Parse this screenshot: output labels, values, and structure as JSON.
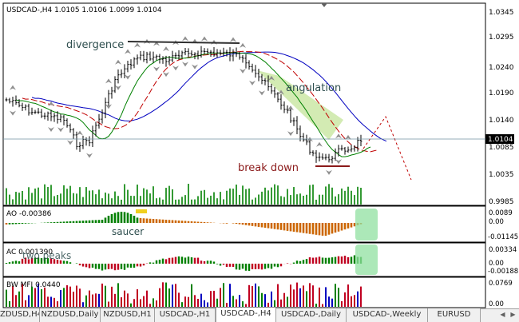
{
  "main_chart": {
    "title": "USDCAD-,H4  1.0105 1.0106 1.0099 1.0104",
    "price_labels": [
      "1.0345",
      "1.0295",
      "1.0240",
      "1.0190",
      "1.0140",
      "1.0085",
      "1.0035",
      "0.9985"
    ],
    "current_price": "1.0104",
    "annotations": {
      "divergence": "divergence",
      "angulation": "angulation",
      "break_down": "break down"
    }
  },
  "ao_panel": {
    "title": "AO -0.00386",
    "scale": [
      "0.0089",
      "0.00",
      "-0.01145"
    ],
    "annotation": "saucer"
  },
  "ac_panel": {
    "title": "AC 0.001390",
    "scale": [
      "0.00334",
      "0.00",
      "-0.00188"
    ],
    "annotation": "two peaks"
  },
  "mfi_panel": {
    "title": "BW MFI 0.0440",
    "scale": [
      "0.0769",
      "0.00"
    ]
  },
  "tabs": [
    "ZDUSD,H4",
    "NZDUSD,Daily",
    "NZDUSD,H1",
    "USDCAD-,H1",
    "USDCAD-,H4",
    "USDCAD-,Daily",
    "USDCAD-,Weekly",
    "EURUSD"
  ],
  "active_tab": "USDCAD-,H4",
  "colors": {
    "bars": "#000000",
    "ma_fast": "#008000",
    "ma_mid": "#c00000",
    "ma_slow": "#0000c0",
    "ao_up": "#008000",
    "ao_down": "#cc6600",
    "ac_down": "#c00020",
    "mfi": "#c00020",
    "highlight": "#90e0a0",
    "angulation_fill": "#c8e6a0",
    "text_annot": "#2f4f4f"
  },
  "icons": [
    "fractal-up-arrow-icon",
    "fractal-down-arrow-icon",
    "scroll-left-icon",
    "scroll-right-icon"
  ]
}
